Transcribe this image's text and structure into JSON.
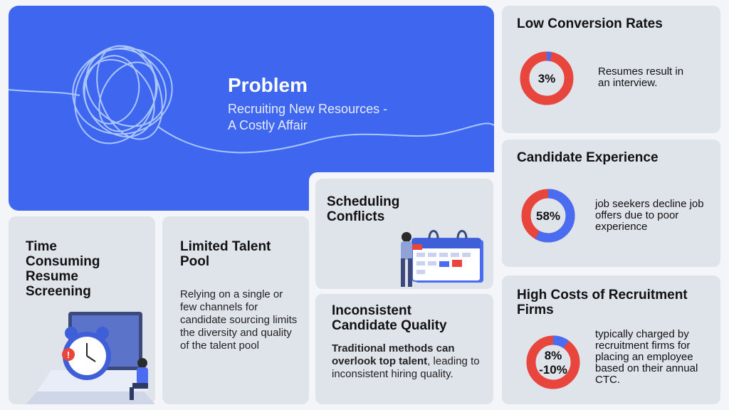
{
  "hero": {
    "title": "Problem",
    "subtitle_line1": "Recruiting New Resources -",
    "subtitle_line2": "A Costly Affair"
  },
  "cards": {
    "time_consuming": {
      "title": "Time Consuming Resume Screening"
    },
    "limited_talent": {
      "title": "Limited Talent Pool",
      "body": "Relying on a single or few channels for candidate sourcing limits the diversity and quality of the talent pool"
    },
    "scheduling": {
      "title": "Scheduling Conflicts"
    },
    "inconsistent": {
      "title": "Inconsistent Candidate Quality",
      "body_bold": "Traditional methods can overlook top talent",
      "body_rest": ", leading to inconsistent hiring quality."
    }
  },
  "stats": {
    "low_conversion": {
      "title": "Low Conversion Rates",
      "value_label": "3%",
      "fraction": 0.03,
      "text": "Resumes result in an interview."
    },
    "candidate_experience": {
      "title": "Candidate Experience",
      "value_label": "58%",
      "fraction": 0.58,
      "text": "job seekers decline job offers due to poor experience"
    },
    "recruitment_firms": {
      "title": "High Costs of Recruitment Firms",
      "value_line1": "8%",
      "value_line2": "-10%",
      "fraction": 0.1,
      "text": "typically charged by recruitment firms for placing an employee based on their annual CTC."
    }
  },
  "colors": {
    "hero_blue": "#3f66ee",
    "donut_red": "#e8453c",
    "donut_blue": "#4a6cf0",
    "card_bg": "#dfe3ea"
  }
}
